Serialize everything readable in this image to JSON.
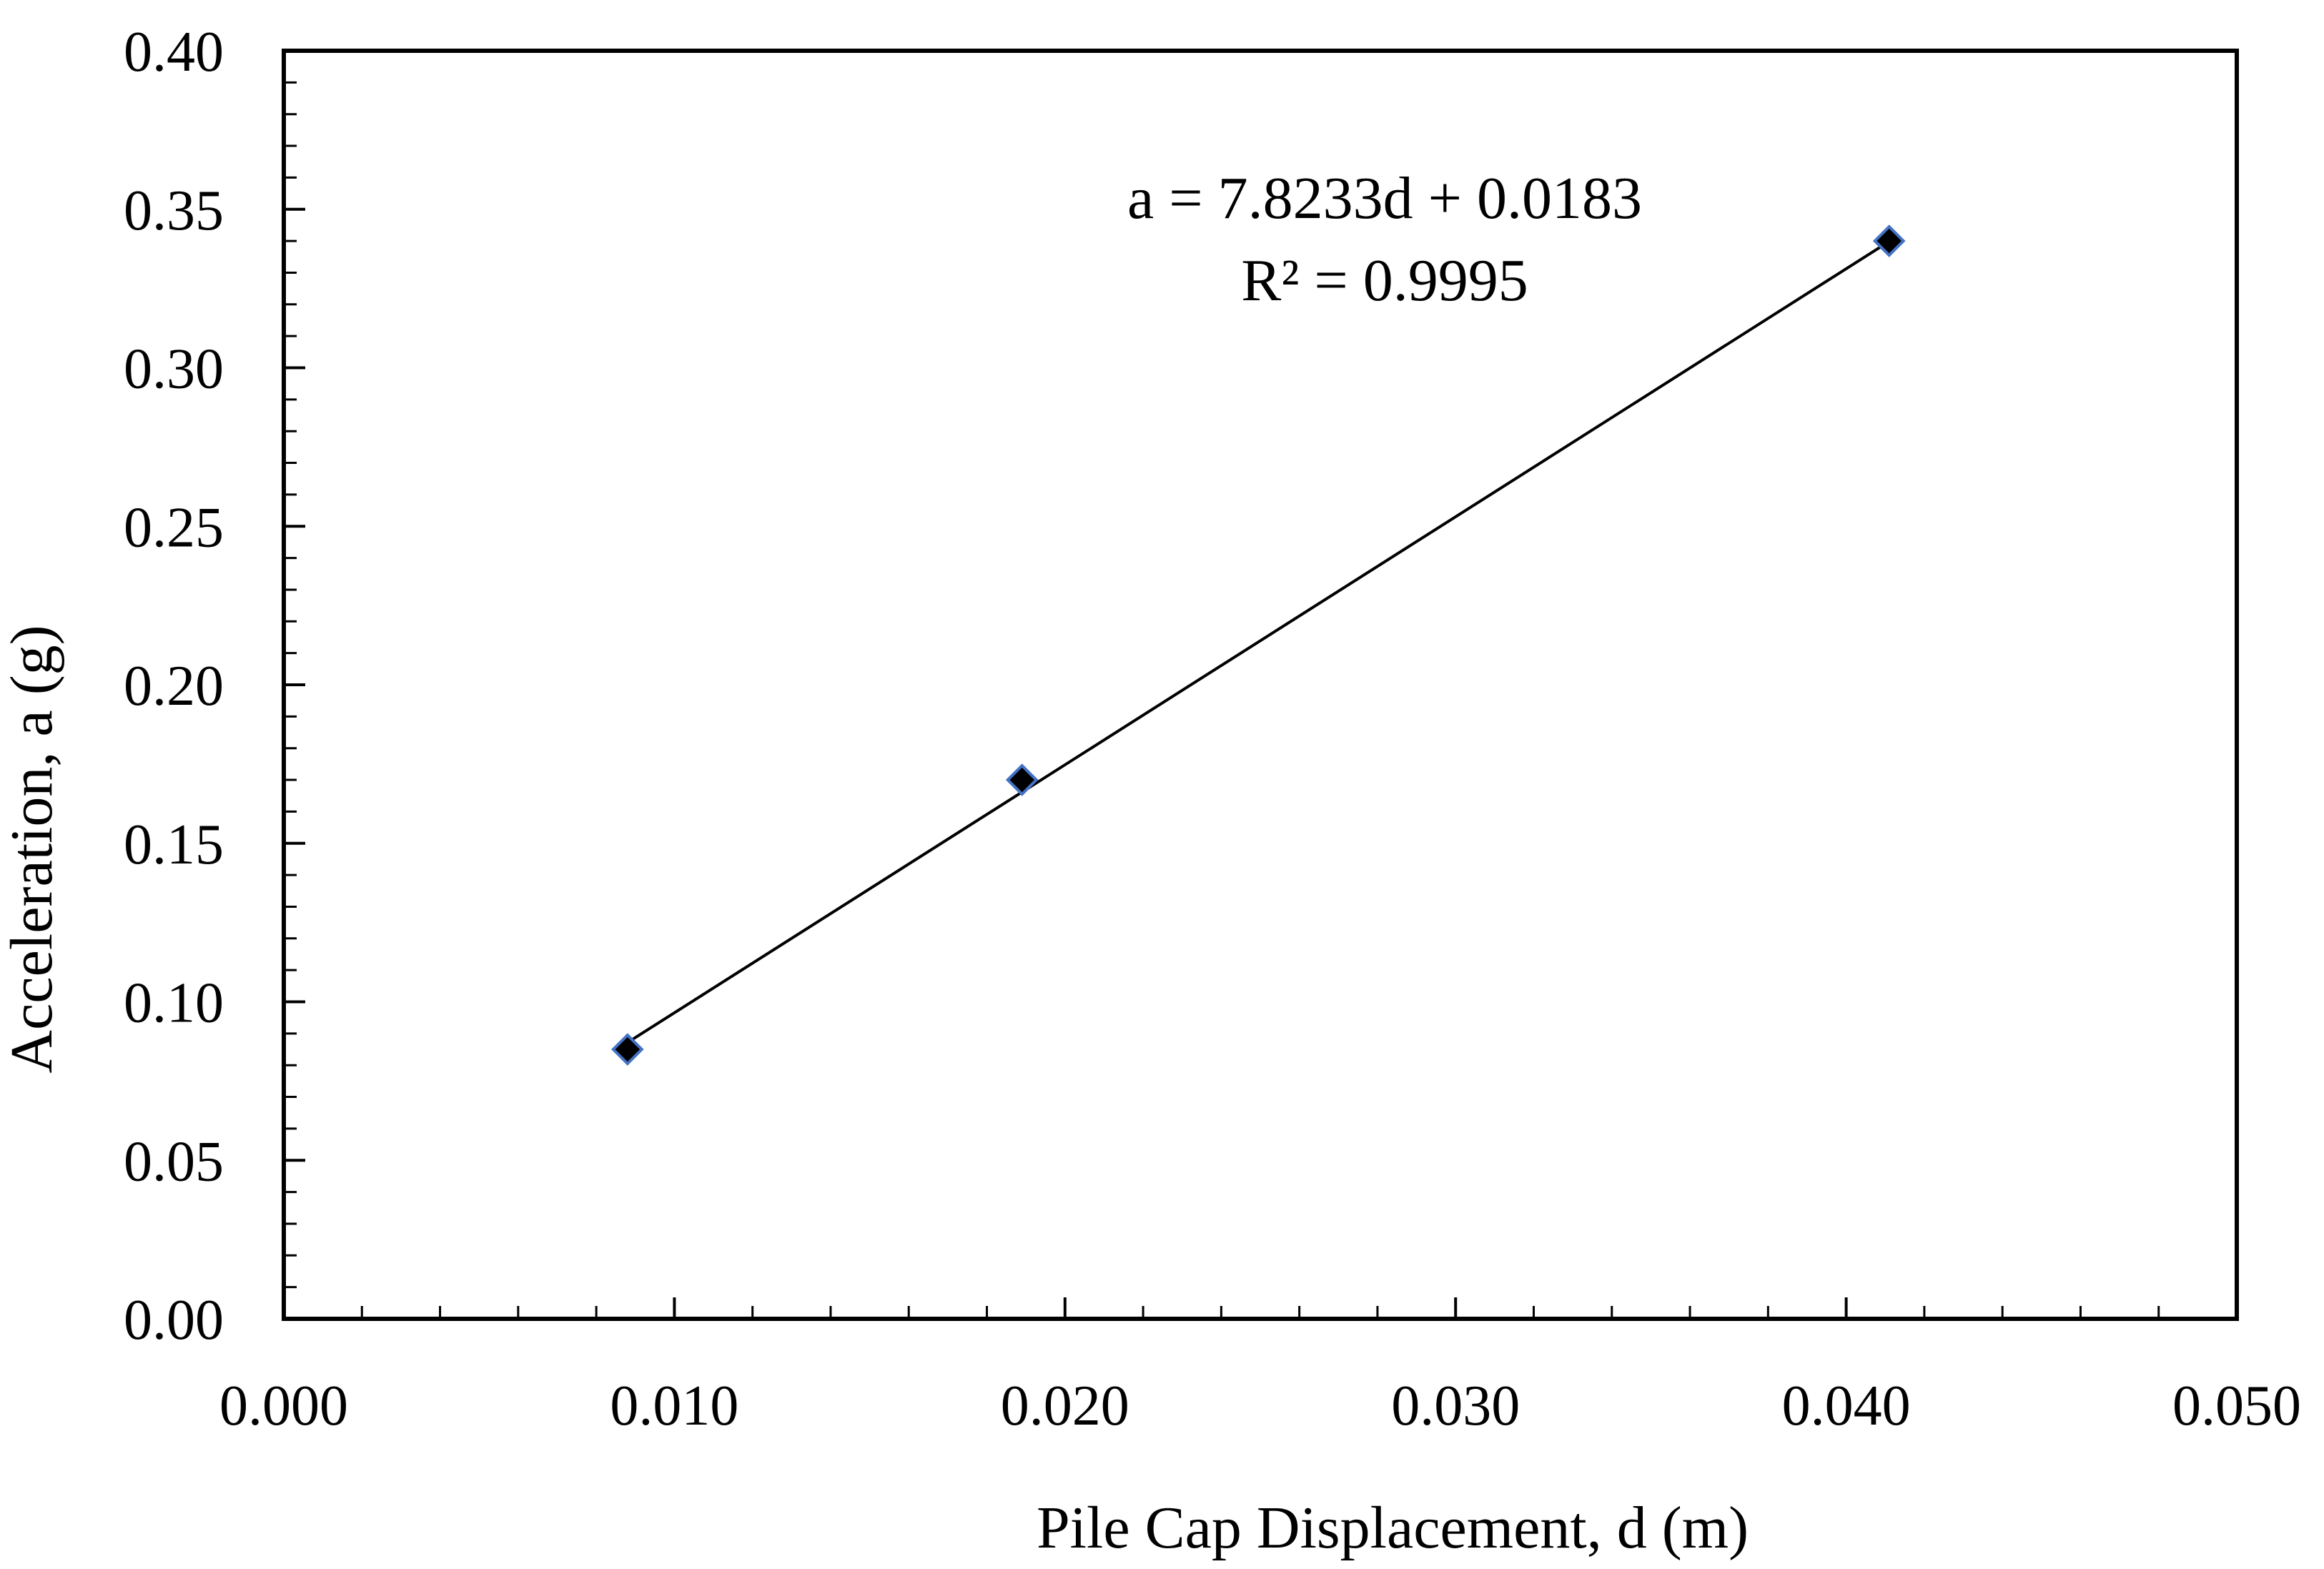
{
  "chart_data": {
    "type": "scatter",
    "title": "",
    "xlabel": "Pile Cap Displacement, d (m)",
    "ylabel": "Acceleration, a  (g)",
    "xlim": [
      0.0,
      0.05
    ],
    "ylim": [
      0.0,
      0.4
    ],
    "x_ticks": [
      "0.000",
      "0.010",
      "0.020",
      "0.030",
      "0.040",
      "0.050"
    ],
    "y_ticks": [
      "0.00",
      "0.05",
      "0.10",
      "0.15",
      "0.20",
      "0.25",
      "0.30",
      "0.35",
      "0.40"
    ],
    "x_tick_values": [
      0.0,
      0.01,
      0.02,
      0.03,
      0.04,
      0.05
    ],
    "y_tick_values": [
      0.0,
      0.05,
      0.1,
      0.15,
      0.2,
      0.25,
      0.3,
      0.35,
      0.4
    ],
    "grid": false,
    "series": [
      {
        "marker": "diamond",
        "marker_color": "#000000",
        "marker_edge_color": "#4472c4",
        "points": [
          {
            "x": 0.0088,
            "y": 0.085
          },
          {
            "x": 0.0189,
            "y": 0.17
          },
          {
            "x": 0.0411,
            "y": 0.34
          }
        ]
      }
    ],
    "trendline": {
      "type": "linear",
      "slope": 7.8233,
      "intercept": 0.0183,
      "x_range": [
        0.0088,
        0.0411
      ],
      "color": "#000000"
    },
    "annotations": {
      "equation": "a = 7.8233d + 0.0183",
      "r_squared": "R² = 0.9995"
    }
  }
}
